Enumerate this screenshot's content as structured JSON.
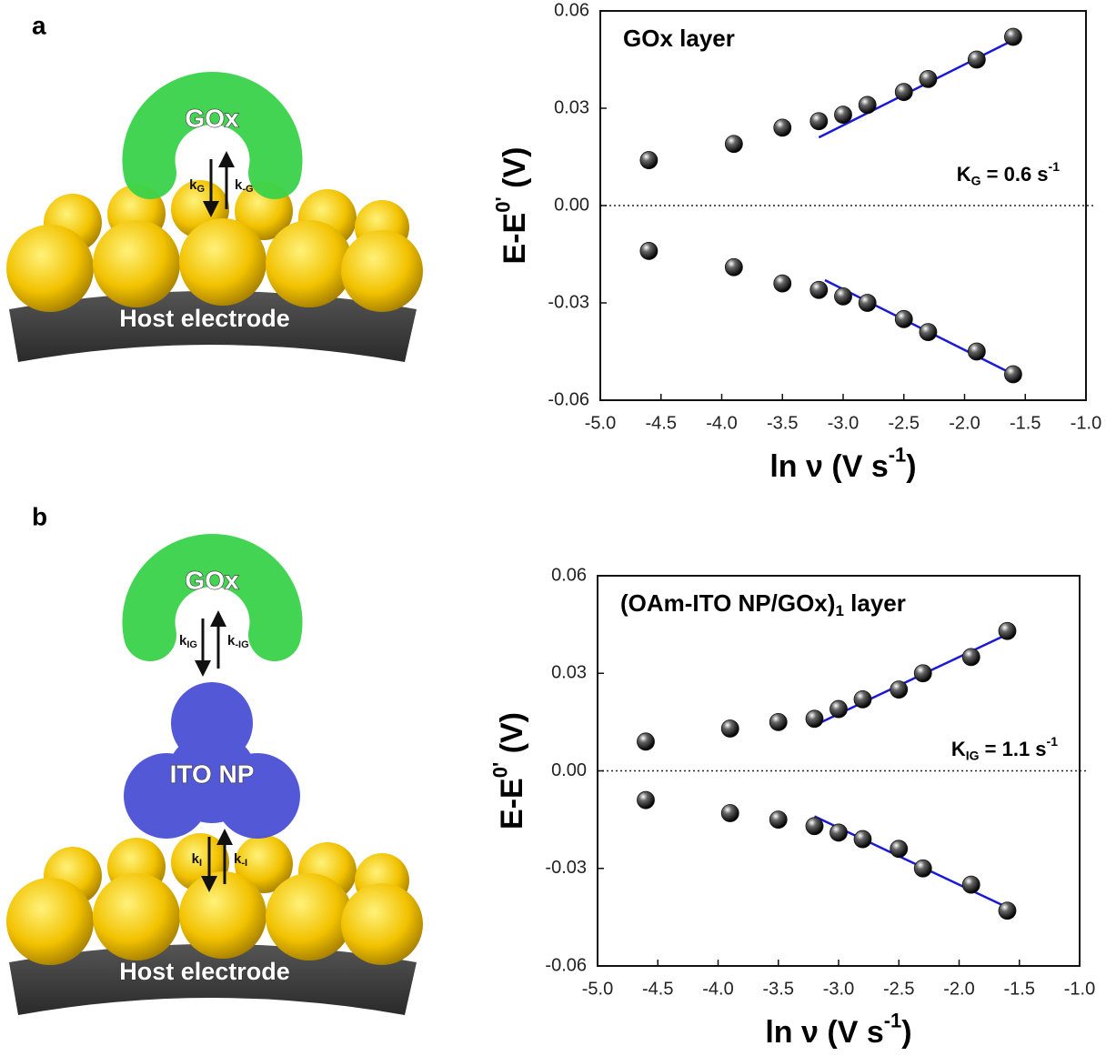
{
  "panel_labels": [
    "a",
    "b"
  ],
  "diagrams": [
    {
      "enzyme": "GOx",
      "k_forward": {
        "text": "k",
        "sub": "G"
      },
      "k_backward": {
        "text": "k",
        "sub": "-G"
      },
      "electrode": "Host electrode"
    },
    {
      "enzyme": "GOx",
      "k_forward": {
        "text": "k",
        "sub": "IG"
      },
      "k_backward": {
        "text": "k",
        "sub": "-IG"
      },
      "mediator": "ITO NP",
      "k2_forward": {
        "text": "k",
        "sub": "I"
      },
      "k2_backward": {
        "text": "k",
        "sub": "-I"
      },
      "electrode": "Host electrode"
    }
  ],
  "chart_data": [
    {
      "type": "scatter",
      "title": {
        "text": "GOx layer"
      },
      "annotation": {
        "text": "K",
        "sub": "G",
        "after": " = 0.6 s",
        "sup": "-1"
      },
      "x_label": {
        "text": "ln ν (V s",
        "sup": "-1",
        "after": ")"
      },
      "y_label": {
        "text": "E-E",
        "sup": "0'",
        "after": " (V)"
      },
      "x": [
        -4.6,
        -3.9,
        -3.5,
        -3.2,
        -3.0,
        -2.8,
        -2.5,
        -2.3,
        -1.9,
        -1.6
      ],
      "series": [
        {
          "color": "#111111",
          "values": [
            0.014,
            0.019,
            0.024,
            0.026,
            0.028,
            0.031,
            0.035,
            0.039,
            0.045,
            0.052
          ]
        },
        {
          "color": "#111111",
          "values": [
            -0.014,
            -0.019,
            -0.024,
            -0.026,
            -0.028,
            -0.03,
            -0.035,
            -0.039,
            -0.045,
            -0.052
          ]
        }
      ],
      "fits": [
        {
          "color": "#1a1ad6",
          "x": [
            -3.2,
            -1.6
          ],
          "y": [
            0.021,
            0.051
          ]
        },
        {
          "color": "#1a1ad6",
          "x": [
            -3.15,
            -1.6
          ],
          "y": [
            -0.023,
            -0.052
          ]
        }
      ],
      "xlim": [
        -5.0,
        -1.0
      ],
      "xticks": [
        {
          "value": -5,
          "label": "-5.0"
        },
        -4.5,
        {
          "value": -4,
          "label": "-4.0"
        },
        -3.5,
        {
          "value": -3,
          "label": "-3.0"
        },
        -2.5,
        {
          "value": -2,
          "label": "-2.0"
        },
        -1.5,
        {
          "value": -1,
          "label": "-1.0"
        }
      ],
      "ylim": [
        -0.06,
        0.06
      ],
      "yticks": [
        -0.06,
        -0.03,
        {
          "value": 0,
          "label": "0.00"
        },
        0.03,
        0.06
      ],
      "zero_line": true
    },
    {
      "type": "scatter",
      "title": {
        "text": "(OAm-ITO NP/GOx)",
        "sub": "1",
        "after": " layer"
      },
      "annotation": {
        "text": "K",
        "sub": "IG",
        "after": " = 1.1 s",
        "sup": "-1"
      },
      "x_label": {
        "text": "ln ν (V s",
        "sup": "-1",
        "after": ")"
      },
      "y_label": {
        "text": "E-E",
        "sup": "0'",
        "after": " (V)"
      },
      "x": [
        -4.6,
        -3.9,
        -3.5,
        -3.2,
        -3.0,
        -2.8,
        -2.5,
        -2.3,
        -1.9,
        -1.6
      ],
      "series": [
        {
          "color": "#111111",
          "values": [
            0.009,
            0.013,
            0.015,
            0.016,
            0.019,
            0.022,
            0.025,
            0.03,
            0.035,
            0.043
          ]
        },
        {
          "color": "#111111",
          "values": [
            -0.009,
            -0.013,
            -0.015,
            -0.017,
            -0.019,
            -0.021,
            -0.024,
            -0.03,
            -0.035,
            -0.043
          ]
        }
      ],
      "fits": [
        {
          "color": "#1a1ad6",
          "x": [
            -3.2,
            -1.6
          ],
          "y": [
            0.014,
            0.042
          ]
        },
        {
          "color": "#1a1ad6",
          "x": [
            -3.2,
            -1.6
          ],
          "y": [
            -0.014,
            -0.042
          ]
        }
      ],
      "xlim": [
        -5.0,
        -1.0
      ],
      "xticks": [
        {
          "value": -5,
          "label": "-5.0"
        },
        -4.5,
        {
          "value": -4,
          "label": "-4.0"
        },
        -3.5,
        {
          "value": -3,
          "label": "-3.0"
        },
        -2.5,
        {
          "value": -2,
          "label": "-2.0"
        },
        -1.5,
        {
          "value": -1,
          "label": "-1.0"
        }
      ],
      "ylim": [
        -0.06,
        0.06
      ],
      "yticks": [
        -0.06,
        -0.03,
        {
          "value": 0,
          "label": "0.00"
        },
        0.03,
        0.06
      ],
      "zero_line": true
    }
  ]
}
